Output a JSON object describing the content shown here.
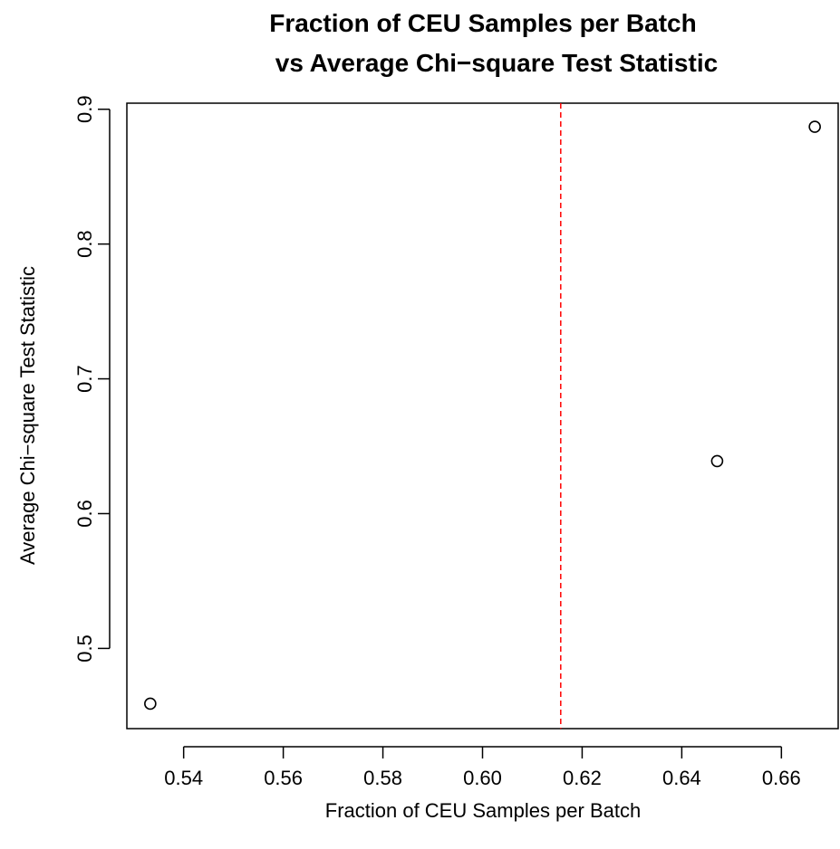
{
  "chart_data": {
    "type": "scatter",
    "title_lines": [
      "Fraction of CEU Samples per Batch",
      "vs Average Chi−square Test Statistic"
    ],
    "xlabel": "Fraction of CEU Samples per Batch",
    "ylabel": "Average Chi−square Test Statistic",
    "xlim": [
      0.5286,
      0.6714
    ],
    "ylim": [
      0.4405,
      0.9045
    ],
    "xticks": [
      0.54,
      0.56,
      0.58,
      0.6,
      0.62,
      0.64,
      0.66
    ],
    "xtick_labels": [
      "0.54",
      "0.56",
      "0.58",
      "0.60",
      "0.62",
      "0.64",
      "0.66"
    ],
    "yticks": [
      0.5,
      0.6,
      0.7,
      0.8,
      0.9
    ],
    "ytick_labels": [
      "0.5",
      "0.6",
      "0.7",
      "0.8",
      "0.9"
    ],
    "points": [
      {
        "x": 0.5333,
        "y": 0.459
      },
      {
        "x": 0.6471,
        "y": 0.639
      },
      {
        "x": 0.6667,
        "y": 0.887
      }
    ],
    "reference_line": {
      "orientation": "vertical",
      "x": 0.6157,
      "color": "#ff0000",
      "style": "dashed"
    },
    "grid": false,
    "legend": "none"
  }
}
